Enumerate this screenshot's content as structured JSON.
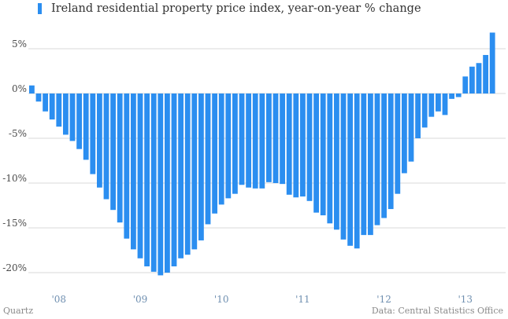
{
  "chart_data": {
    "type": "bar",
    "title": "",
    "xlabel": "",
    "ylabel": "",
    "color": "#2b8ef0",
    "ylim": [
      -21,
      8.5
    ],
    "yticks": [
      5,
      0,
      -5,
      -10,
      -15,
      -20
    ],
    "ytick_labels": [
      "5%",
      "0%",
      "-5%",
      "-10%",
      "-15%",
      "-20%"
    ],
    "xtick_labels": [
      "'08",
      "'09",
      "'10",
      "'11",
      "'12",
      "'13"
    ],
    "xtick_bar_index": [
      4,
      16,
      28,
      40,
      52,
      64
    ],
    "series": [
      {
        "name": "Ireland residential property price index, year-on-year % change",
        "values": [
          0.9,
          -0.9,
          -2.0,
          -2.9,
          -3.7,
          -4.6,
          -5.3,
          -6.2,
          -7.4,
          -9.0,
          -10.5,
          -11.8,
          -13.0,
          -14.4,
          -16.2,
          -17.4,
          -18.4,
          -19.3,
          -19.9,
          -20.3,
          -20.0,
          -19.3,
          -18.4,
          -18.0,
          -17.4,
          -16.4,
          -14.6,
          -13.4,
          -12.4,
          -11.7,
          -11.2,
          -10.2,
          -10.5,
          -10.6,
          -10.6,
          -9.9,
          -10.0,
          -10.1,
          -11.3,
          -11.6,
          -11.5,
          -12.0,
          -13.3,
          -13.6,
          -14.5,
          -15.2,
          -16.3,
          -17.0,
          -17.3,
          -15.8,
          -15.8,
          -14.7,
          -13.9,
          -12.9,
          -11.2,
          -8.9,
          -7.6,
          -5.0,
          -3.8,
          -2.6,
          -2.0,
          -2.4,
          -0.6,
          -0.4,
          1.9,
          3.0,
          3.4,
          4.3,
          6.8
        ]
      }
    ]
  },
  "footer": {
    "source_left": "Quartz",
    "source_right": "Data: Central Statistics Office"
  }
}
